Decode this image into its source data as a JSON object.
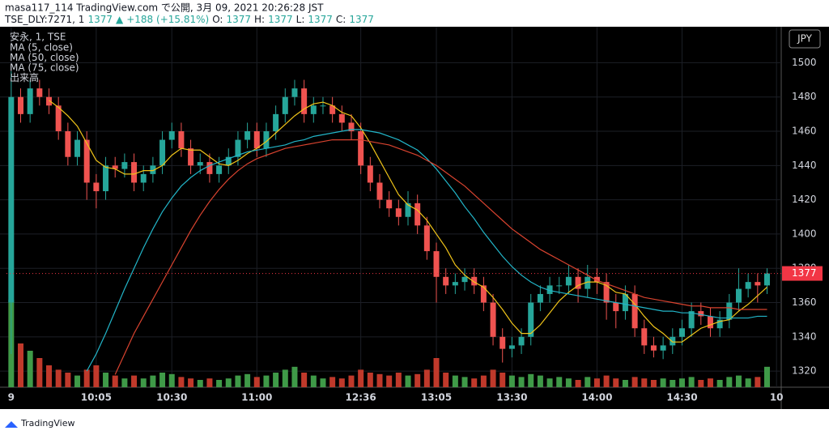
{
  "header": {
    "title": "masa117_114 TradingView.com で公開, 3月 09, 2021 20:26:28 JST",
    "quote": [
      "TSE_DLY:7271, 1",
      "1377",
      "▲",
      "+188 (+15.81%)",
      "O:",
      "1377",
      "H:",
      "1377",
      "L:",
      "1377",
      "C:",
      "1377"
    ],
    "quote_colors": [
      "#131722",
      "#26a69a",
      "#26a69a",
      "#26a69a",
      "#131722",
      "#26a69a",
      "#131722",
      "#26a69a",
      "#131722",
      "#26a69a",
      "#131722",
      "#26a69a"
    ]
  },
  "footer": {
    "brand": "TradingView"
  },
  "chart_data": {
    "type": "candlestick",
    "symbol": "安永, 1, TSE",
    "currency": "JPY",
    "volume_name": "出来高",
    "up_color": "#26a69a",
    "down_color": "#ef5350",
    "volume_up_color": "#3f9a48",
    "volume_down_color": "#c0392b",
    "last_price": 1377,
    "last_price_color": "#f23645",
    "ylim": [
      1310.6,
      1521
    ],
    "yticks": [
      1320,
      1340,
      1360,
      1380,
      1400,
      1420,
      1440,
      1460,
      1480,
      1500
    ],
    "xlim": [
      -0.5,
      81.5
    ],
    "xticks": [
      {
        "value": 0,
        "label": "9"
      },
      {
        "value": 9,
        "label": "10:05"
      },
      {
        "value": 17,
        "label": "10:30"
      },
      {
        "value": 26,
        "label": "11:00"
      },
      {
        "value": 37,
        "label": "12:36"
      },
      {
        "value": 45,
        "label": "13:05"
      },
      {
        "value": 53,
        "label": "13:30"
      },
      {
        "value": 62,
        "label": "14:00"
      },
      {
        "value": 71,
        "label": "14:30"
      },
      {
        "value": 81,
        "label": "10"
      }
    ],
    "volume_lim": [
      0,
      100
    ],
    "grid": true,
    "open": [
      1360,
      1480,
      1470,
      1485,
      1480,
      1475,
      1460,
      1445,
      1455,
      1430,
      1425,
      1440,
      1438,
      1442,
      1430,
      1435,
      1440,
      1455,
      1460,
      1450,
      1440,
      1442,
      1435,
      1440,
      1445,
      1455,
      1460,
      1450,
      1460,
      1470,
      1480,
      1485,
      1470,
      1475,
      1475,
      1470,
      1465,
      1460,
      1440,
      1430,
      1420,
      1415,
      1410,
      1418,
      1405,
      1390,
      1375,
      1370,
      1372,
      1375,
      1370,
      1360,
      1340,
      1333,
      1335,
      1340,
      1360,
      1365,
      1370,
      1370,
      1375,
      1368,
      1375,
      1372,
      1360,
      1355,
      1365,
      1345,
      1335,
      1332,
      1335,
      1340,
      1345,
      1355,
      1352,
      1345,
      1350,
      1360,
      1368,
      1372,
      1370
    ],
    "high": [
      1495,
      1485,
      1490,
      1490,
      1485,
      1480,
      1465,
      1460,
      1460,
      1435,
      1445,
      1445,
      1447,
      1447,
      1440,
      1445,
      1460,
      1465,
      1465,
      1455,
      1447,
      1447,
      1445,
      1450,
      1460,
      1465,
      1465,
      1465,
      1475,
      1485,
      1490,
      1490,
      1480,
      1480,
      1480,
      1475,
      1470,
      1465,
      1445,
      1435,
      1425,
      1420,
      1425,
      1423,
      1410,
      1395,
      1380,
      1377,
      1380,
      1380,
      1375,
      1365,
      1345,
      1340,
      1345,
      1365,
      1370,
      1375,
      1375,
      1382,
      1380,
      1382,
      1380,
      1377,
      1365,
      1370,
      1370,
      1350,
      1340,
      1340,
      1345,
      1350,
      1360,
      1360,
      1357,
      1355,
      1365,
      1380,
      1377,
      1377,
      1380
    ],
    "low": [
      1330,
      1465,
      1465,
      1475,
      1470,
      1455,
      1440,
      1440,
      1420,
      1415,
      1420,
      1433,
      1433,
      1425,
      1425,
      1430,
      1435,
      1450,
      1445,
      1435,
      1435,
      1430,
      1430,
      1435,
      1440,
      1450,
      1445,
      1445,
      1455,
      1465,
      1475,
      1465,
      1465,
      1470,
      1465,
      1460,
      1455,
      1435,
      1425,
      1415,
      1410,
      1405,
      1405,
      1400,
      1385,
      1360,
      1365,
      1365,
      1367,
      1365,
      1355,
      1335,
      1325,
      1328,
      1330,
      1335,
      1355,
      1360,
      1365,
      1365,
      1360,
      1363,
      1365,
      1350,
      1345,
      1350,
      1340,
      1330,
      1328,
      1327,
      1330,
      1335,
      1340,
      1347,
      1340,
      1340,
      1345,
      1355,
      1363,
      1360,
      1365
    ],
    "close": [
      1480,
      1470,
      1485,
      1480,
      1475,
      1460,
      1445,
      1455,
      1430,
      1425,
      1440,
      1438,
      1442,
      1430,
      1435,
      1440,
      1455,
      1460,
      1450,
      1440,
      1442,
      1435,
      1440,
      1445,
      1455,
      1460,
      1450,
      1460,
      1470,
      1480,
      1485,
      1470,
      1475,
      1475,
      1470,
      1465,
      1460,
      1440,
      1430,
      1420,
      1415,
      1410,
      1418,
      1405,
      1390,
      1375,
      1370,
      1372,
      1375,
      1370,
      1360,
      1340,
      1333,
      1335,
      1340,
      1360,
      1365,
      1370,
      1370,
      1375,
      1368,
      1375,
      1372,
      1360,
      1355,
      1365,
      1345,
      1335,
      1332,
      1335,
      1340,
      1345,
      1355,
      1352,
      1345,
      1350,
      1360,
      1368,
      1372,
      1370,
      1377
    ],
    "volume": [
      60,
      30,
      25,
      20,
      15,
      12,
      10,
      8,
      12,
      15,
      10,
      8,
      6,
      8,
      6,
      8,
      10,
      9,
      7,
      6,
      5,
      6,
      5,
      6,
      8,
      9,
      7,
      8,
      10,
      12,
      14,
      10,
      8,
      6,
      7,
      6,
      8,
      12,
      10,
      9,
      8,
      10,
      8,
      9,
      12,
      20,
      10,
      8,
      7,
      6,
      8,
      12,
      10,
      8,
      7,
      9,
      8,
      6,
      7,
      6,
      5,
      7,
      6,
      8,
      6,
      5,
      7,
      6,
      5,
      6,
      5,
      6,
      7,
      5,
      6,
      5,
      7,
      8,
      6,
      7,
      14
    ],
    "series": [
      {
        "name": "MA (5, close)",
        "color": "#f0c419",
        "values": [
          null,
          null,
          null,
          null,
          1478,
          1474,
          1469,
          1463,
          1453,
          1443,
          1439,
          1438,
          1435,
          1435,
          1437,
          1437,
          1440,
          1446,
          1450,
          1449,
          1449,
          1445,
          1441,
          1440,
          1443,
          1447,
          1450,
          1454,
          1459,
          1464,
          1469,
          1473,
          1476,
          1477,
          1475,
          1471,
          1469,
          1462,
          1453,
          1443,
          1433,
          1423,
          1417,
          1414,
          1408,
          1400,
          1392,
          1382,
          1376,
          1372,
          1369,
          1363,
          1356,
          1348,
          1342,
          1342,
          1347,
          1354,
          1361,
          1366,
          1370,
          1372,
          1372,
          1370,
          1366,
          1365,
          1359,
          1352,
          1346,
          1342,
          1337,
          1337,
          1341,
          1345,
          1347,
          1349,
          1350,
          1355,
          1359,
          1364,
          1369
        ]
      },
      {
        "name": "MA (50, close)",
        "color": "#22b5c8",
        "values": [
          null,
          null,
          null,
          null,
          null,
          null,
          null,
          null,
          1320,
          1330,
          1342,
          1355,
          1368,
          1380,
          1392,
          1403,
          1413,
          1421,
          1428,
          1433,
          1437,
          1440,
          1442,
          1444,
          1446,
          1448,
          1449,
          1450,
          1451,
          1452,
          1454,
          1455,
          1457,
          1458,
          1459,
          1460,
          1461,
          1461,
          1460,
          1459,
          1457,
          1455,
          1452,
          1449,
          1444,
          1438,
          1431,
          1424,
          1416,
          1409,
          1401,
          1394,
          1387,
          1381,
          1376,
          1372,
          1369,
          1367,
          1366,
          1365,
          1364,
          1363,
          1362,
          1361,
          1360,
          1359,
          1358,
          1357,
          1356,
          1355,
          1355,
          1354,
          1354,
          1353,
          1352,
          1351,
          1351,
          1351,
          1351,
          1352,
          1352
        ]
      },
      {
        "name": "MA (75, close)",
        "color": "#d9432f",
        "values": [
          null,
          null,
          null,
          null,
          null,
          null,
          null,
          null,
          null,
          null,
          null,
          1318,
          1330,
          1342,
          1352,
          1362,
          1372,
          1382,
          1392,
          1402,
          1411,
          1419,
          1426,
          1432,
          1437,
          1441,
          1444,
          1446,
          1448,
          1450,
          1451,
          1452,
          1453,
          1454,
          1455,
          1455,
          1455,
          1455,
          1454,
          1453,
          1452,
          1450,
          1448,
          1446,
          1443,
          1440,
          1436,
          1432,
          1428,
          1423,
          1418,
          1413,
          1408,
          1403,
          1399,
          1395,
          1391,
          1388,
          1385,
          1382,
          1379,
          1376,
          1373,
          1371,
          1369,
          1367,
          1365,
          1363,
          1362,
          1361,
          1360,
          1359,
          1358,
          1358,
          1357,
          1357,
          1357,
          1356,
          1356,
          1356,
          1356
        ]
      }
    ]
  }
}
